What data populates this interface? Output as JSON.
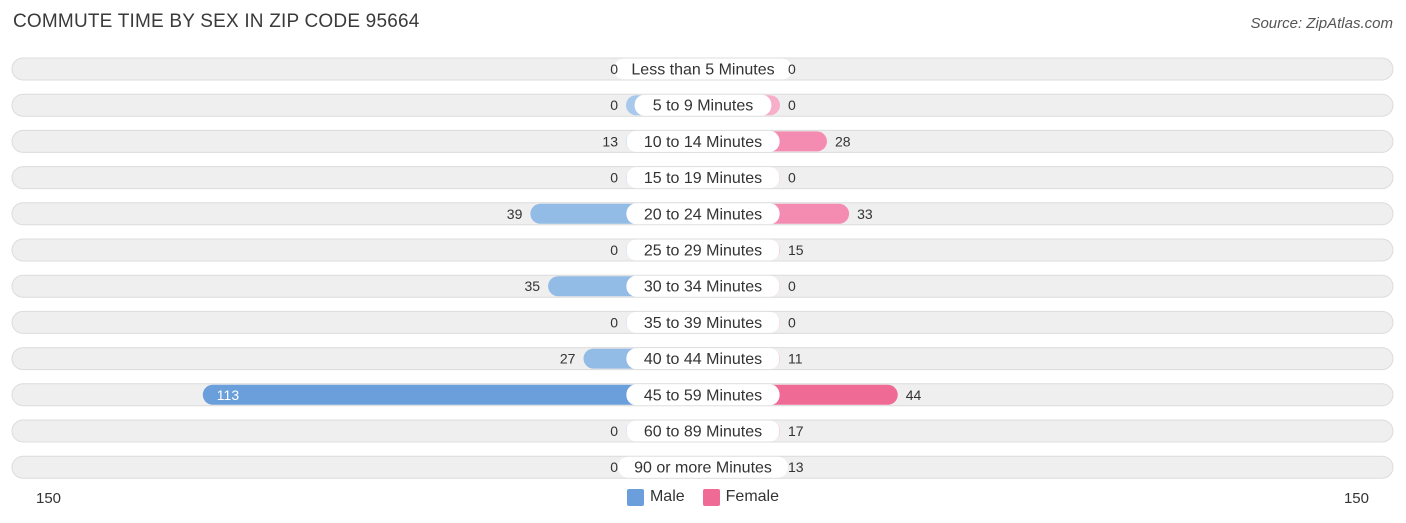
{
  "title": "COMMUTE TIME BY SEX IN ZIP CODE 95664",
  "source": "Source: ZipAtlas.com",
  "colors": {
    "male": "#6a9fdc",
    "male_light": "#a8c8ec",
    "female": "#f06a96",
    "female_light": "#f7aec8",
    "row_bg": "#efefef",
    "row_border": "#dcdcdc"
  },
  "axis": {
    "left_label": "150",
    "right_label": "150",
    "max": 150
  },
  "legend": {
    "male": "Male",
    "female": "Female"
  },
  "chart_data": {
    "type": "bar",
    "orientation": "horizontal-diverging",
    "categories": [
      "Less than 5 Minutes",
      "5 to 9 Minutes",
      "10 to 14 Minutes",
      "15 to 19 Minutes",
      "20 to 24 Minutes",
      "25 to 29 Minutes",
      "30 to 34 Minutes",
      "35 to 39 Minutes",
      "40 to 44 Minutes",
      "45 to 59 Minutes",
      "60 to 89 Minutes",
      "90 or more Minutes"
    ],
    "series": [
      {
        "name": "Male",
        "values": [
          0,
          0,
          13,
          0,
          39,
          0,
          35,
          0,
          27,
          113,
          0,
          0
        ]
      },
      {
        "name": "Female",
        "values": [
          0,
          0,
          28,
          0,
          33,
          15,
          0,
          0,
          11,
          44,
          17,
          13
        ]
      }
    ],
    "xlim": [
      -150,
      150
    ],
    "legend_position": "bottom-center"
  }
}
